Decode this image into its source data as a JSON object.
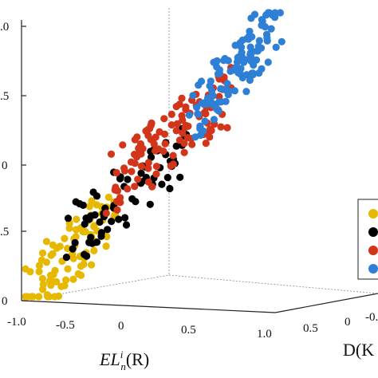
{
  "chart_data": {
    "type": "scatter",
    "title": "",
    "grid": false,
    "legend": {
      "placement": "right",
      "entries": [
        "",
        "",
        "",
        ""
      ]
    },
    "xlabel_parts": {
      "prefix": "EL",
      "superscript": "i",
      "subscript": "n",
      "suffix": "(R)"
    },
    "ylabel_visible": "D(K",
    "xlim": [
      -1.0,
      1.0
    ],
    "x_ticks": [
      "-1.0",
      "-0.5",
      "0",
      "0.5",
      "1.0"
    ],
    "y_ticks": [
      "0.5",
      "0",
      "-0."
    ],
    "z_ticks": [
      "0",
      ".5",
      "0",
      ".5",
      ".0"
    ],
    "series": [
      {
        "color": "#e6b800",
        "n": 95,
        "x_range": [
          -1.0,
          -0.3
        ],
        "z_range": [
          0.0,
          0.65
        ]
      },
      {
        "color": "#000000",
        "n": 70,
        "x_range": [
          -0.6,
          0.25
        ],
        "z_range": [
          0.5,
          1.1
        ]
      },
      {
        "color": "#d2351a",
        "n": 110,
        "x_range": [
          -0.25,
          0.6
        ],
        "z_range": [
          0.9,
          1.55
        ]
      },
      {
        "color": "#2e7fd6",
        "n": 115,
        "x_range": [
          0.4,
          1.0
        ],
        "z_range": [
          1.4,
          2.05
        ]
      }
    ]
  }
}
